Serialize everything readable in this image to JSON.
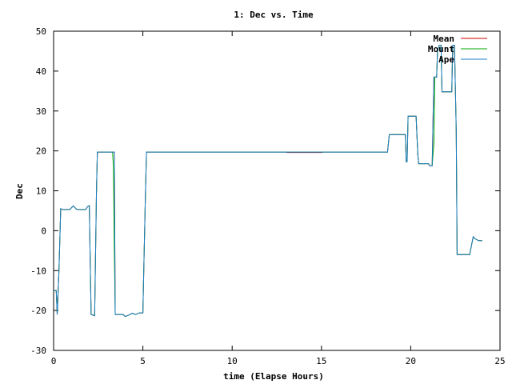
{
  "chart_data": {
    "type": "line",
    "title": "1: Dec vs. Time",
    "xlabel": "time (Elapse Hours)",
    "ylabel": "Dec",
    "xlim": [
      0,
      25
    ],
    "ylim": [
      -30,
      50
    ],
    "xticks": [
      0,
      5,
      10,
      15,
      20,
      25
    ],
    "yticks": [
      -30,
      -20,
      -10,
      0,
      10,
      20,
      30,
      40,
      50
    ],
    "grid": false,
    "legend_position": "top-right",
    "series": [
      {
        "name": "Mean",
        "color": "#cc0000",
        "points": [
          [
            0.0,
            -15
          ],
          [
            0.15,
            -15
          ],
          [
            0.2,
            -21
          ],
          [
            0.3,
            -10
          ],
          [
            0.4,
            5.5
          ],
          [
            0.5,
            5.3
          ],
          [
            0.9,
            5.3
          ],
          [
            1.1,
            6.2
          ],
          [
            1.3,
            5.3
          ],
          [
            1.8,
            5.3
          ],
          [
            1.9,
            6
          ],
          [
            2.0,
            6.3
          ],
          [
            2.1,
            -21
          ],
          [
            2.3,
            -21.3
          ],
          [
            2.4,
            10
          ],
          [
            2.45,
            19.7
          ],
          [
            3.3,
            19.7
          ],
          [
            3.4,
            19.7
          ],
          [
            3.45,
            -21
          ],
          [
            3.9,
            -21
          ],
          [
            4.0,
            -21.5
          ],
          [
            4.2,
            -21.2
          ],
          [
            4.4,
            -20.7
          ],
          [
            4.6,
            -21
          ],
          [
            4.8,
            -20.6
          ],
          [
            5.0,
            -20.6
          ],
          [
            5.05,
            -10
          ],
          [
            5.1,
            0
          ],
          [
            5.15,
            10
          ],
          [
            5.2,
            19.7
          ],
          [
            13.0,
            19.7
          ],
          [
            13.1,
            19.6
          ],
          [
            15.0,
            19.6
          ],
          [
            15.1,
            19.7
          ],
          [
            18.7,
            19.7
          ],
          [
            18.8,
            24.1
          ],
          [
            19.7,
            24.1
          ],
          [
            19.75,
            17.3
          ],
          [
            19.8,
            17.3
          ],
          [
            19.85,
            28.7
          ],
          [
            20.3,
            28.7
          ],
          [
            20.4,
            19
          ],
          [
            20.45,
            16.8
          ],
          [
            21.0,
            16.8
          ],
          [
            21.05,
            16.3
          ],
          [
            21.2,
            16.3
          ],
          [
            21.25,
            28
          ],
          [
            21.3,
            38.5
          ],
          [
            21.45,
            38.5
          ],
          [
            21.5,
            45
          ],
          [
            21.6,
            46.5
          ],
          [
            21.7,
            46.5
          ],
          [
            21.75,
            34.8
          ],
          [
            22.3,
            34.8
          ],
          [
            22.35,
            46.5
          ],
          [
            22.45,
            46.5
          ],
          [
            22.55,
            25
          ],
          [
            22.6,
            -6
          ],
          [
            23.3,
            -6
          ],
          [
            23.5,
            -1.5
          ],
          [
            23.6,
            -2
          ],
          [
            23.8,
            -2.5
          ],
          [
            24.0,
            -2.5
          ]
        ]
      },
      {
        "name": "Mount",
        "color": "#00aa00",
        "points": [
          [
            0.0,
            -15
          ],
          [
            0.15,
            -15
          ],
          [
            0.2,
            -21
          ],
          [
            0.3,
            -10
          ],
          [
            0.4,
            5.5
          ],
          [
            0.5,
            5.3
          ],
          [
            0.9,
            5.3
          ],
          [
            1.1,
            6.2
          ],
          [
            1.3,
            5.3
          ],
          [
            1.8,
            5.3
          ],
          [
            1.9,
            6
          ],
          [
            2.0,
            6.3
          ],
          [
            2.1,
            -21
          ],
          [
            2.3,
            -21.3
          ],
          [
            2.4,
            10
          ],
          [
            2.45,
            19.7
          ],
          [
            3.3,
            19.7
          ],
          [
            3.35,
            16
          ],
          [
            3.4,
            -5
          ],
          [
            3.45,
            -21
          ],
          [
            3.9,
            -21
          ],
          [
            4.0,
            -21.5
          ],
          [
            4.2,
            -21.2
          ],
          [
            4.4,
            -20.7
          ],
          [
            4.6,
            -21
          ],
          [
            4.8,
            -20.6
          ],
          [
            5.0,
            -20.6
          ],
          [
            5.05,
            -10
          ],
          [
            5.1,
            0
          ],
          [
            5.15,
            10
          ],
          [
            5.2,
            19.7
          ],
          [
            18.7,
            19.7
          ],
          [
            18.8,
            24.1
          ],
          [
            19.7,
            24.1
          ],
          [
            19.75,
            17.3
          ],
          [
            19.8,
            17.3
          ],
          [
            19.85,
            28.7
          ],
          [
            20.3,
            28.7
          ],
          [
            20.4,
            19
          ],
          [
            20.45,
            16.8
          ],
          [
            21.0,
            16.8
          ],
          [
            21.05,
            16.3
          ],
          [
            21.2,
            16.3
          ],
          [
            21.3,
            22
          ],
          [
            21.35,
            38.5
          ],
          [
            21.45,
            38.5
          ],
          [
            21.5,
            45
          ],
          [
            21.6,
            46.5
          ],
          [
            21.7,
            46.5
          ],
          [
            21.75,
            34.8
          ],
          [
            22.3,
            34.8
          ],
          [
            22.35,
            46.5
          ],
          [
            22.45,
            46.5
          ],
          [
            22.55,
            25
          ],
          [
            22.6,
            -6
          ],
          [
            23.3,
            -6
          ],
          [
            23.5,
            -1.5
          ],
          [
            23.6,
            -2
          ],
          [
            23.8,
            -2.5
          ],
          [
            24.0,
            -2.5
          ]
        ]
      },
      {
        "name": "Ape",
        "color": "#1e7fc8",
        "points": [
          [
            0.0,
            -15
          ],
          [
            0.15,
            -15
          ],
          [
            0.2,
            -21
          ],
          [
            0.3,
            -10
          ],
          [
            0.4,
            5.5
          ],
          [
            0.5,
            5.3
          ],
          [
            0.9,
            5.3
          ],
          [
            1.1,
            6.2
          ],
          [
            1.3,
            5.3
          ],
          [
            1.8,
            5.3
          ],
          [
            1.9,
            6
          ],
          [
            2.0,
            6.3
          ],
          [
            2.1,
            -21
          ],
          [
            2.3,
            -21.3
          ],
          [
            2.4,
            10
          ],
          [
            2.45,
            19.7
          ],
          [
            3.3,
            19.7
          ],
          [
            3.4,
            19.7
          ],
          [
            3.45,
            -21
          ],
          [
            3.9,
            -21
          ],
          [
            4.0,
            -21.5
          ],
          [
            4.2,
            -21.2
          ],
          [
            4.4,
            -20.7
          ],
          [
            4.6,
            -21
          ],
          [
            4.8,
            -20.6
          ],
          [
            5.0,
            -20.6
          ],
          [
            5.05,
            -10
          ],
          [
            5.1,
            0
          ],
          [
            5.15,
            10
          ],
          [
            5.2,
            19.7
          ],
          [
            18.7,
            19.7
          ],
          [
            18.8,
            24.1
          ],
          [
            19.7,
            24.1
          ],
          [
            19.75,
            17.3
          ],
          [
            19.8,
            17.3
          ],
          [
            19.85,
            28.7
          ],
          [
            20.3,
            28.7
          ],
          [
            20.4,
            19
          ],
          [
            20.45,
            16.8
          ],
          [
            21.0,
            16.8
          ],
          [
            21.05,
            16.3
          ],
          [
            21.2,
            16.3
          ],
          [
            21.25,
            28
          ],
          [
            21.3,
            38.5
          ],
          [
            21.45,
            38.5
          ],
          [
            21.5,
            45
          ],
          [
            21.6,
            46.5
          ],
          [
            21.7,
            46.5
          ],
          [
            21.75,
            34.8
          ],
          [
            22.3,
            34.8
          ],
          [
            22.35,
            46.5
          ],
          [
            22.45,
            46.5
          ],
          [
            22.55,
            25
          ],
          [
            22.6,
            -6
          ],
          [
            23.3,
            -6
          ],
          [
            23.5,
            -1.5
          ],
          [
            23.6,
            -2
          ],
          [
            23.8,
            -2.5
          ],
          [
            24.0,
            -2.5
          ]
        ]
      }
    ]
  }
}
